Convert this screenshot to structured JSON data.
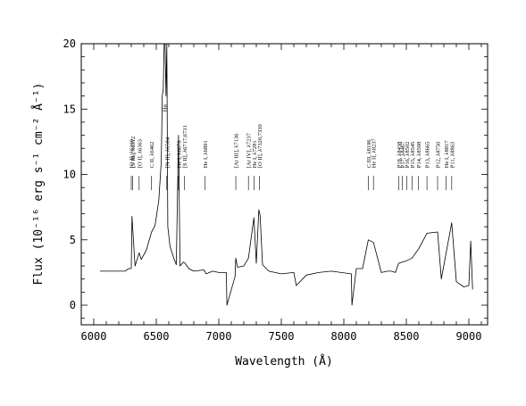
{
  "chart_data": {
    "type": "line",
    "xlabel": "Wavelength (Å)",
    "ylabel": "Flux (10⁻¹⁶ erg s⁻¹ cm⁻² Å⁻¹)",
    "xlim": [
      5900,
      9150
    ],
    "ylim": [
      -1.5,
      20
    ],
    "x_ticks": [
      6000,
      6500,
      7000,
      7500,
      8000,
      8500,
      9000
    ],
    "y_ticks": [
      0,
      5,
      10,
      15,
      20
    ],
    "grid": false,
    "series": [
      {
        "x": [
          6050,
          6150,
          6250,
          6280,
          6300,
          6306,
          6330,
          6363,
          6380,
          6420,
          6462,
          6490,
          6520,
          6540,
          6548,
          6556,
          6563,
          6570,
          6578,
          6584,
          6592,
          6610,
          6640,
          6660,
          6678,
          6690,
          6717,
          6731,
          6760,
          6800,
          6880,
          6900,
          6950,
          7000,
          7060,
          7065,
          7130,
          7136,
          7150,
          7200,
          7237,
          7281,
          7300,
          7320,
          7330,
          7350,
          7400,
          7500,
          7600,
          7620,
          7700,
          7800,
          7900,
          8060,
          8065,
          8100,
          8150,
          8196,
          8237,
          8300,
          8350,
          8380,
          8413,
          8438,
          8467,
          8502,
          8545,
          8598,
          8665,
          8750,
          8780,
          8863,
          8900,
          8960,
          9000,
          9015,
          9030
        ],
        "y": [
          2.6,
          2.6,
          2.6,
          2.8,
          2.8,
          6.8,
          3.0,
          4.0,
          3.5,
          4.2,
          5.6,
          6.1,
          8.0,
          11.0,
          16.0,
          16.5,
          20.0,
          20.0,
          16.0,
          20.0,
          6.0,
          4.5,
          3.6,
          3.1,
          13.0,
          3.0,
          3.3,
          3.2,
          2.8,
          2.6,
          2.7,
          2.4,
          2.6,
          2.5,
          2.5,
          0.0,
          2.2,
          3.6,
          2.9,
          3.0,
          3.6,
          6.7,
          3.2,
          7.3,
          6.9,
          3.1,
          2.6,
          2.4,
          2.5,
          1.5,
          2.3,
          2.5,
          2.6,
          2.4,
          0.0,
          2.8,
          2.8,
          5.0,
          4.8,
          2.5,
          2.6,
          2.6,
          2.5,
          3.2,
          3.3,
          3.4,
          3.6,
          4.3,
          5.5,
          5.6,
          2.0,
          6.3,
          1.8,
          1.4,
          1.5,
          4.9,
          1.2
        ]
      }
    ],
    "annotations": [
      {
        "x": 6300,
        "text": "[O I], λ6300"
      },
      {
        "x": 6312,
        "text": "[S III], λ6312"
      },
      {
        "x": 6363,
        "text": "[O I], λ6363"
      },
      {
        "x": 6462,
        "text": "C II, λ6462"
      },
      {
        "x": 6563,
        "text": "Hα"
      },
      {
        "x": 6584,
        "text": "[N II], λ6584"
      },
      {
        "x": 6678,
        "text": "He I, λ6678"
      },
      {
        "x": 6724,
        "text": "[S II], λ6717,6731"
      },
      {
        "x": 6891,
        "text": "He I, λ6891"
      },
      {
        "x": 7136,
        "text": "[Ar III], λ7136"
      },
      {
        "x": 7237,
        "text": "[Ar IV], λ7237"
      },
      {
        "x": 7281,
        "text": "He I, λ7281"
      },
      {
        "x": 7325,
        "text": "[O II], λ7320,7330"
      },
      {
        "x": 8196,
        "text": "C III, λ8196"
      },
      {
        "x": 8237,
        "text": "He II, λ8237"
      },
      {
        "x": 8438,
        "text": "P18, λ8438"
      },
      {
        "x": 8467,
        "text": "P17, λ8467"
      },
      {
        "x": 8502,
        "text": "P16, λ8502"
      },
      {
        "x": 8545,
        "text": "P15, λ8545"
      },
      {
        "x": 8598,
        "text": "P14, λ8598"
      },
      {
        "x": 8665,
        "text": "P13, λ8665"
      },
      {
        "x": 8750,
        "text": "P12, λ8750"
      },
      {
        "x": 8817,
        "text": "He I, λ8817"
      },
      {
        "x": 8863,
        "text": "P11, λ8863"
      }
    ]
  }
}
